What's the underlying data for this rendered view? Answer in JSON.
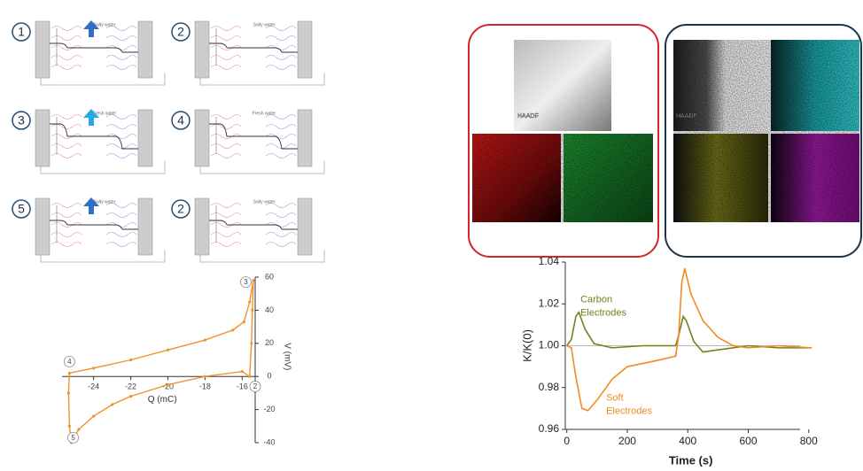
{
  "diagram": {
    "panels": [
      {
        "number": "1",
        "label": "Salty water",
        "arrow_color": "#2f6fc4"
      },
      {
        "number": "2",
        "label": "Salty water"
      },
      {
        "number": "3",
        "label": "Fresh water",
        "arrow_color": "#2aa7e2"
      },
      {
        "number": "4",
        "label": "Fresh water"
      },
      {
        "number": "5",
        "label": "Salty water",
        "arrow_color": "#2f6fc4"
      },
      {
        "number": "2",
        "label": "Salty water"
      }
    ]
  },
  "micrographs": {
    "labels": [
      "HAADF",
      "HAADF"
    ]
  },
  "chart_data": [
    {
      "type": "line",
      "xlabel": "Q (mC)",
      "ylabel": "V (mV)",
      "x": [
        -15.6,
        -15.5,
        -15.45,
        -15.4,
        -15.6,
        -15.9,
        -16.5,
        -18,
        -20,
        -22,
        -24,
        -25.3,
        -25.35,
        -25.3,
        -25.2,
        -24.8,
        -24,
        -23,
        -22,
        -20,
        -18,
        -16,
        -15.6
      ],
      "series": [
        {
          "color": "#f0922e",
          "values": [
            0,
            20,
            40,
            58,
            45,
            33,
            28,
            22,
            16,
            10,
            5,
            2,
            -10,
            -30,
            -40,
            -32,
            -24,
            -17,
            -12,
            -5,
            0,
            3,
            0
          ]
        }
      ],
      "xlim": [
        -25.7,
        -15.3
      ],
      "ylim": [
        -40,
        60
      ],
      "xticks": [
        -24,
        -22,
        -20,
        -18,
        -16
      ],
      "yticks": [
        -40,
        -20,
        0,
        20,
        40,
        60
      ],
      "annotations": [
        {
          "text": "2",
          "x": -15.3,
          "y": -6
        },
        {
          "text": "3",
          "x": -15.8,
          "y": 57
        },
        {
          "text": "4",
          "x": -25.3,
          "y": 9
        },
        {
          "text": "5",
          "x": -25.1,
          "y": -37
        }
      ]
    },
    {
      "type": "line",
      "xlabel": "Time (s)",
      "ylabel": "K/K(0)",
      "hline": 1.0,
      "series": [
        {
          "color": "#7b7d1c",
          "x": [
            0,
            15,
            30,
            40,
            60,
            90,
            150,
            250,
            360,
            370,
            385,
            395,
            420,
            450,
            500,
            600,
            700,
            810
          ],
          "values": [
            1.0,
            1.003,
            1.014,
            1.016,
            1.008,
            1.001,
            0.999,
            1.0,
            1.0,
            1.005,
            1.014,
            1.012,
            1.002,
            0.997,
            0.998,
            1.0,
            0.999,
            0.999
          ]
        },
        {
          "color": "#f28a22",
          "x": [
            0,
            15,
            30,
            50,
            70,
            100,
            150,
            200,
            300,
            360,
            370,
            380,
            390,
            410,
            450,
            500,
            550,
            600,
            700,
            810
          ],
          "values": [
            1.0,
            0.999,
            0.985,
            0.97,
            0.969,
            0.974,
            0.984,
            0.99,
            0.993,
            0.995,
            1.005,
            1.03,
            1.037,
            1.025,
            1.012,
            1.004,
            1.0,
            0.999,
            1.0,
            0.999
          ]
        }
      ],
      "xlim": [
        -5,
        830
      ],
      "ylim": [
        0.96,
        1.04
      ],
      "xticks": [
        0,
        200,
        400,
        600,
        800
      ],
      "yticks": [
        0.96,
        0.98,
        {
          "value": 1.0,
          "label": "1.00"
        },
        1.02,
        1.04
      ],
      "annotations": [
        {
          "lines": [
            "Carbon",
            "Electrodes"
          ],
          "color": "#7b7d1c",
          "x": 45,
          "y": 1.022
        },
        {
          "lines": [
            "Soft",
            "Electrodes"
          ],
          "color": "#f28a22",
          "x": 130,
          "y": 0.975
        }
      ]
    }
  ]
}
